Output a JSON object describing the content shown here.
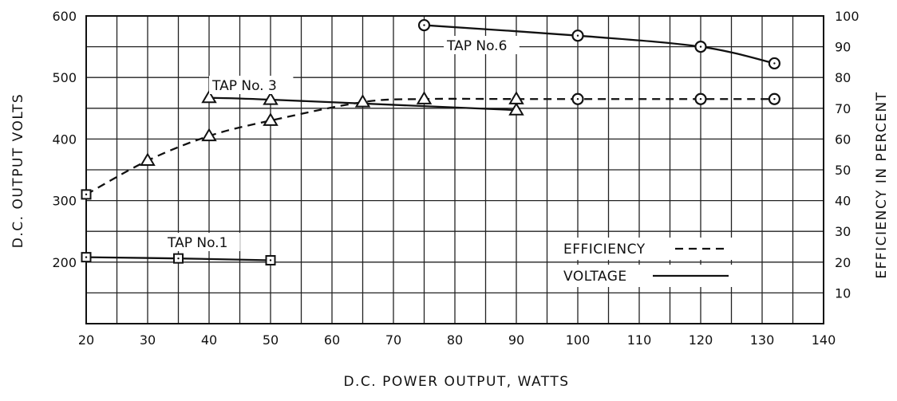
{
  "chart_data": {
    "type": "line",
    "xlabel": "D.C.  POWER  OUTPUT,  WATTS",
    "ylabel": "D.C.  OUTPUT  VOLTS",
    "ylabel_right": "EFFICIENCY  IN  PERCENT",
    "xlim": [
      20,
      140
    ],
    "ylim": [
      100,
      600
    ],
    "ylim_right": [
      0,
      100
    ],
    "x_ticks": [
      "20",
      "30",
      "40",
      "50",
      "60",
      "70",
      "80",
      "90",
      "100",
      "110",
      "120",
      "130",
      "140"
    ],
    "y_ticks": [
      "600",
      "500",
      "400",
      "300",
      "200"
    ],
    "y_right_ticks": [
      "100",
      "90",
      "80",
      "70",
      "60",
      "50",
      "40",
      "30",
      "20",
      "10"
    ],
    "grid": true,
    "legend": {
      "position": "lower-right",
      "entries": [
        {
          "label": "EFFICIENCY",
          "style": "dashed"
        },
        {
          "label": "VOLTAGE",
          "style": "solid"
        }
      ]
    },
    "series": [
      {
        "label": "TAP No.6",
        "kind": "voltage",
        "axis": "left",
        "marker": "circle",
        "x": [
          75,
          100,
          120,
          132
        ],
        "y": [
          585,
          568,
          550,
          523
        ]
      },
      {
        "label": "TAP No. 3",
        "kind": "voltage",
        "axis": "left",
        "marker": "triangle",
        "x": [
          40,
          50,
          90
        ],
        "y": [
          467,
          464,
          447
        ]
      },
      {
        "label": "TAP No.1",
        "kind": "voltage",
        "axis": "left",
        "marker": "square",
        "x": [
          20,
          35,
          50
        ],
        "y": [
          208,
          206,
          203
        ]
      },
      {
        "label": "",
        "kind": "efficiency",
        "axis": "right",
        "x": [
          20,
          30,
          40,
          50,
          65,
          75,
          90,
          100,
          120,
          132
        ],
        "y": [
          42,
          53,
          61,
          66,
          72,
          73,
          73,
          73,
          73,
          73
        ],
        "markers": [
          "square",
          "triangle",
          "triangle",
          "triangle",
          "triangle",
          "triangle",
          "triangle",
          "circle",
          "circle",
          "circle"
        ]
      }
    ]
  }
}
